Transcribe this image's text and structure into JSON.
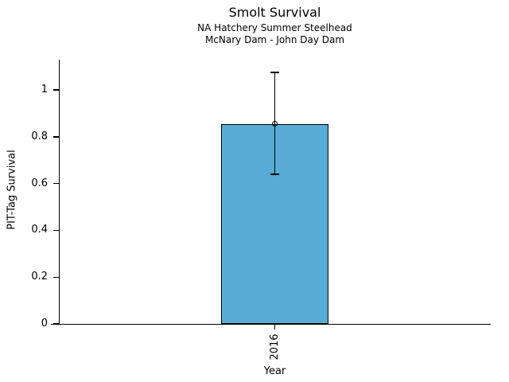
{
  "figure": {
    "title": "Smolt Survival",
    "subtitle1": "NA Hatchery Summer Steelhead",
    "subtitle2": "McNary Dam - John Day Dam"
  },
  "chart_data": {
    "type": "bar",
    "title": "Smolt Survival",
    "subtitle1": "NA Hatchery Summer Steelhead",
    "subtitle2": "McNary Dam - John Day Dam",
    "xlabel": "Year",
    "ylabel": "PIT-Tag Survival",
    "categories": [
      "2016"
    ],
    "values": [
      0.855
    ],
    "error_low": [
      0.64
    ],
    "error_high": [
      1.075
    ],
    "ylim": [
      0,
      1.13
    ],
    "yticks": [
      0,
      0.2,
      0.4,
      0.6,
      0.8,
      1
    ],
    "ytick_labels": [
      "0",
      "0.2",
      "0.4",
      "0.6",
      "0.8",
      "1"
    ],
    "grid": false,
    "legend": null,
    "marker": "open-circle",
    "bar_color": "#58abd4",
    "bar_edge_color": "#000000",
    "errorbar_color": "#000000"
  }
}
